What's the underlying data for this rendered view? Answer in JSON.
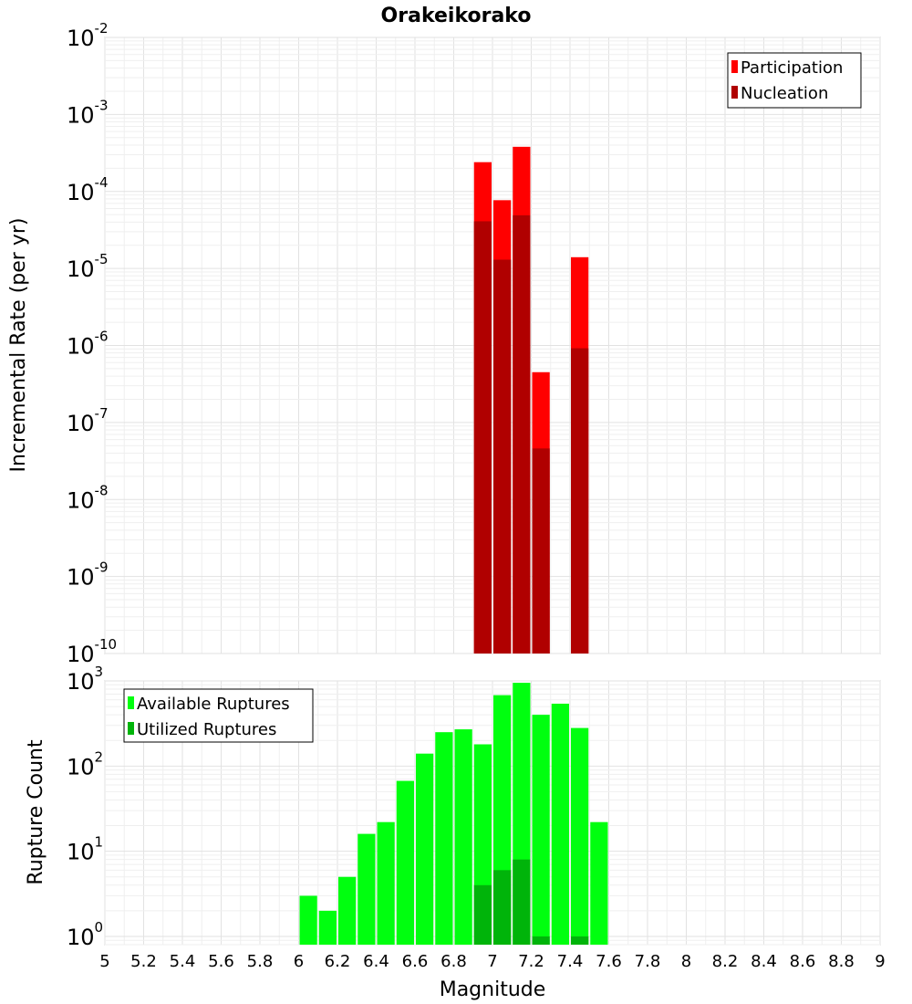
{
  "title": "Orakeikorako",
  "chart_data": [
    {
      "type": "bar",
      "scale": "log",
      "xlabel": "Magnitude",
      "ylabel": "Incremental Rate (per yr)",
      "xlim": [
        5,
        9
      ],
      "ylim": [
        1e-10,
        0.01
      ],
      "y_tick_exponents": [
        "-10",
        "-9",
        "-8",
        "-7",
        "-6",
        "-5",
        "-4",
        "-3",
        "-2"
      ],
      "y_tick_base": "10",
      "grid": true,
      "legend_position": "top-right",
      "bin_width": 0.1,
      "series": [
        {
          "name": "Participation",
          "color": "#ff0000",
          "x": [
            6.95,
            7.05,
            7.15,
            7.25,
            7.45
          ],
          "values": [
            0.00024,
            7.7e-05,
            0.00038,
            4.5e-07,
            1.4e-05
          ]
        },
        {
          "name": "Nucleation",
          "color": "#b00000",
          "x": [
            6.95,
            7.05,
            7.15,
            7.25,
            7.45
          ],
          "values": [
            4.1e-05,
            1.3e-05,
            4.9e-05,
            4.6e-08,
            9.2e-07
          ]
        }
      ]
    },
    {
      "type": "bar",
      "scale": "log",
      "xlabel": "Magnitude",
      "ylabel": "Rupture Count",
      "xlim": [
        5,
        9
      ],
      "ylim": [
        0.8,
        1000
      ],
      "y_tick_exponents": [
        "0",
        "1",
        "2",
        "3"
      ],
      "y_tick_base": "10",
      "grid": true,
      "legend_position": "top-left",
      "bin_width": 0.1,
      "series": [
        {
          "name": "Available Ruptures",
          "color": "#00ff0f",
          "x": [
            6.05,
            6.15,
            6.25,
            6.35,
            6.45,
            6.55,
            6.65,
            6.75,
            6.85,
            6.95,
            7.05,
            7.15,
            7.25,
            7.35,
            7.45,
            7.55
          ],
          "values": [
            3,
            2,
            5,
            16,
            22,
            67,
            140,
            250,
            270,
            180,
            680,
            950,
            400,
            540,
            280,
            22
          ]
        },
        {
          "name": "Utilized Ruptures",
          "color": "#00b40a",
          "x": [
            6.95,
            7.05,
            7.15,
            7.25,
            7.45
          ],
          "values": [
            4,
            6,
            8,
            1,
            1
          ]
        }
      ]
    }
  ],
  "x_ticks": [
    "5",
    "5.2",
    "5.4",
    "5.6",
    "5.8",
    "6",
    "6.2",
    "6.4",
    "6.6",
    "6.8",
    "7",
    "7.2",
    "7.4",
    "7.6",
    "7.8",
    "8",
    "8.2",
    "8.4",
    "8.6",
    "8.8",
    "9"
  ]
}
